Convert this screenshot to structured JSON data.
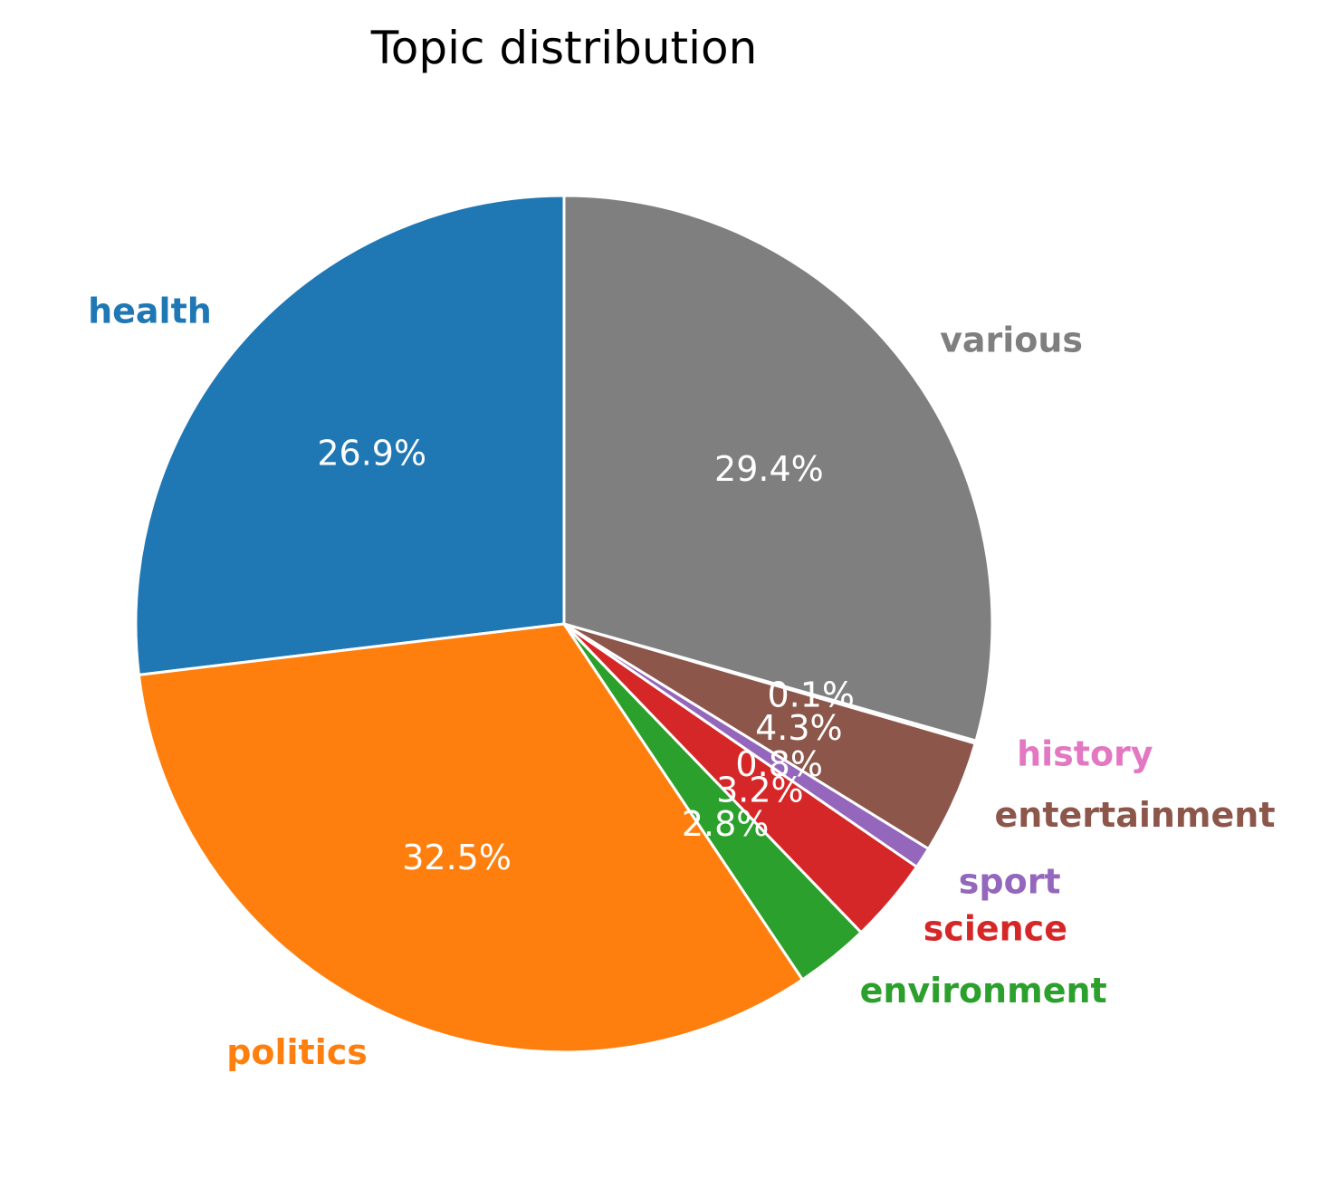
{
  "chart_data": {
    "type": "pie",
    "title": "Topic distribution",
    "start_angle_deg": 90,
    "direction": "counterclockwise",
    "slice_edge_color": "#ffffff",
    "slices": [
      {
        "label": "health",
        "value": 26.9,
        "pct_label": "26.9%",
        "color": "#1f77b4"
      },
      {
        "label": "politics",
        "value": 32.5,
        "pct_label": "32.5%",
        "color": "#ff7f0e"
      },
      {
        "label": "environment",
        "value": 2.8,
        "pct_label": "2.8%",
        "color": "#2ca02c"
      },
      {
        "label": "science",
        "value": 3.2,
        "pct_label": "3.2%",
        "color": "#d62728"
      },
      {
        "label": "sport",
        "value": 0.8,
        "pct_label": "0.8%",
        "color": "#9467bd"
      },
      {
        "label": "entertainment",
        "value": 4.3,
        "pct_label": "4.3%",
        "color": "#8c564b"
      },
      {
        "label": "history",
        "value": 0.1,
        "pct_label": "0.1%",
        "color": "#e377c2"
      },
      {
        "label": "various",
        "value": 29.4,
        "pct_label": "29.4%",
        "color": "#7f7f7f"
      }
    ]
  }
}
